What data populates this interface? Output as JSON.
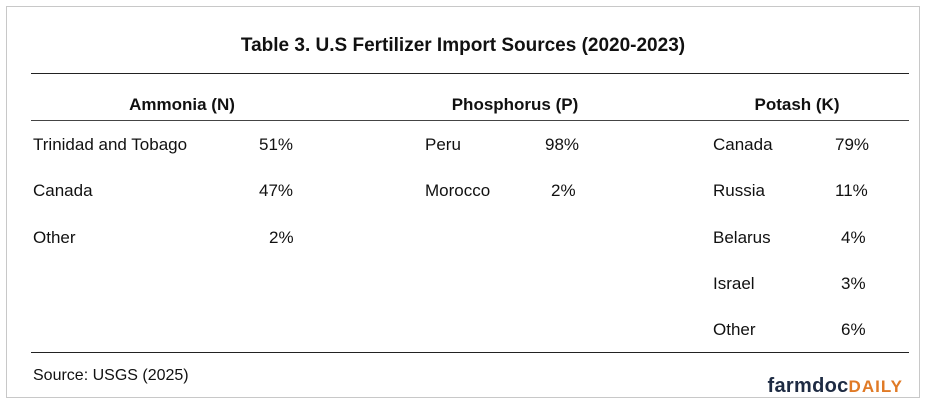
{
  "title": "Table 3. U.S Fertilizer Import Sources (2020-2023)",
  "columns": [
    {
      "header": "Ammonia (N)",
      "rows": [
        {
          "country": "Trinidad and Tobago",
          "share": "51%"
        },
        {
          "country": "Canada",
          "share": "47%"
        },
        {
          "country": "Other",
          "share": "2%"
        }
      ]
    },
    {
      "header": "Phosphorus (P)",
      "rows": [
        {
          "country": "Peru",
          "share": "98%"
        },
        {
          "country": "Morocco",
          "share": "2%"
        }
      ]
    },
    {
      "header": "Potash (K)",
      "rows": [
        {
          "country": "Canada",
          "share": "79%"
        },
        {
          "country": "Russia",
          "share": "11%"
        },
        {
          "country": "Belarus",
          "share": "4%"
        },
        {
          "country": "Israel",
          "share": "3%"
        },
        {
          "country": "Other",
          "share": "6%"
        }
      ]
    }
  ],
  "source": "Source: USGS (2025)",
  "logo": {
    "part1": "farmdoc",
    "part2": "DAILY"
  },
  "colors": {
    "logo_dark": "#1e2b43",
    "logo_accent": "#e07a26"
  }
}
